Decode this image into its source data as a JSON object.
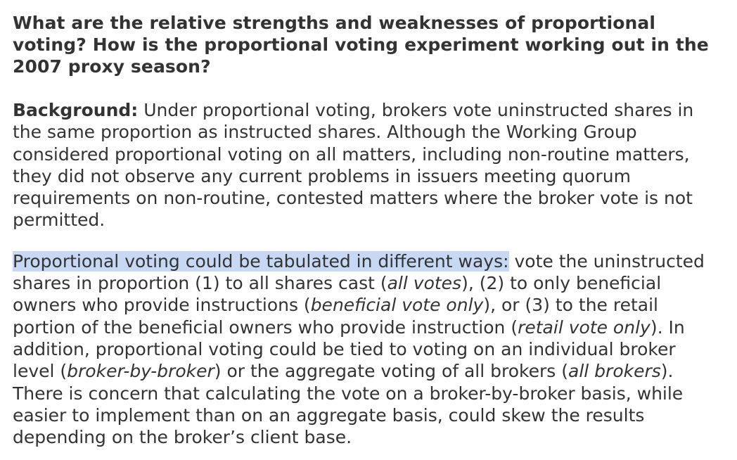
{
  "question": "What are the relative strengths and weaknesses of proportional voting? How is the proportional voting experiment working out in the 2007 proxy season?",
  "background": {
    "label": "Background:",
    "text": " Under proportional voting, brokers vote uninstructed shares in the same proportion as instructed shares. Although the Working Group considered proportional voting on all matters, including non-routine matters, they did not observe any current problems in issuers meeting quorum requirements on non-routine, contested matters where the broker vote is not permitted."
  },
  "tabulation": {
    "highlighted": "Proportional voting could be tabulated in different ways:",
    "t1": " vote the uninstructed shares in proportion (1) to all shares cast (",
    "i1": "all votes",
    "t2": "), (2) to only beneficial owners who provide instructions (",
    "i2": "beneficial vote only",
    "t3": "), or (3) to the retail portion of the beneficial owners who provide instruction (",
    "i3": "retail vote only",
    "t4": "). In addition, proportional voting could be tied to voting on an individual broker level (",
    "i4": "broker-by-broker",
    "t5": ") or the aggregate voting of all brokers (",
    "i5": "all brokers",
    "t6": "). There is concern that calculating the vote on a broker-by-broker basis, while easier to implement than on an aggregate basis, could skew the results depending on the broker’s client base."
  },
  "colors": {
    "text": "#333333",
    "highlight": "#c7d8f5",
    "background": "#ffffff"
  }
}
